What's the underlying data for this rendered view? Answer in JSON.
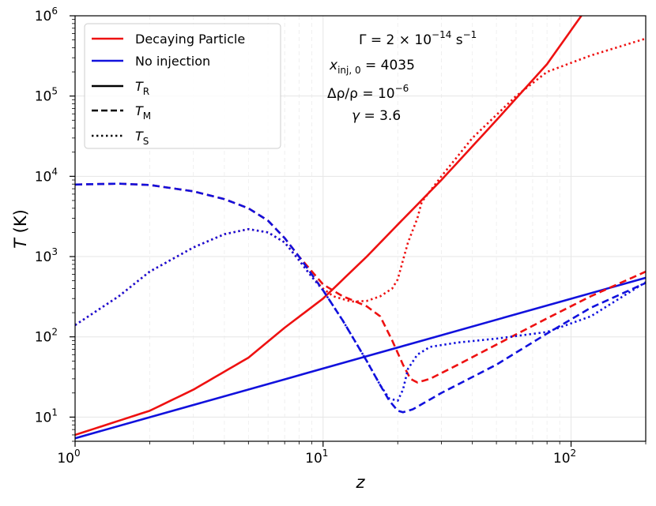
{
  "chart_data": {
    "type": "line",
    "xscale": "log",
    "yscale": "log",
    "xlim": [
      1,
      200
    ],
    "ylim": [
      5,
      1000000
    ],
    "xlabel": "z",
    "ylabel": "T (K)",
    "xticks": [
      {
        "value": 1,
        "base": "10",
        "exp": "0"
      },
      {
        "value": 10,
        "base": "10",
        "exp": "1"
      },
      {
        "value": 100,
        "base": "10",
        "exp": "2"
      }
    ],
    "yticks": [
      {
        "value": 10,
        "base": "10",
        "exp": "1"
      },
      {
        "value": 100,
        "base": "10",
        "exp": "2"
      },
      {
        "value": 1000,
        "base": "10",
        "exp": "3"
      },
      {
        "value": 10000,
        "base": "10",
        "exp": "4"
      },
      {
        "value": 100000,
        "base": "10",
        "exp": "5"
      },
      {
        "value": 1000000,
        "base": "10",
        "exp": "6"
      }
    ],
    "grid": true,
    "legend": {
      "position": "top-left",
      "entries": [
        {
          "label": "Decaying Particle",
          "color": "#ee1111",
          "style": "solid"
        },
        {
          "label": "No injection",
          "color": "#1111dd",
          "style": "solid"
        },
        {
          "label": "T_R",
          "math": "T",
          "sub": "R",
          "color": "#000000",
          "style": "solid"
        },
        {
          "label": "T_M",
          "math": "T",
          "sub": "M",
          "color": "#000000",
          "style": "dashed"
        },
        {
          "label": "T_S",
          "math": "T",
          "sub": "S",
          "color": "#000000",
          "style": "dotted"
        }
      ]
    },
    "annotations": {
      "gamma_rate": {
        "lhs": "Γ = 2 × 10",
        "exp": "−14",
        "unit": " s",
        "unit_exp": "−1"
      },
      "x_inj": {
        "var": "x",
        "sub": "inj, 0",
        "rhs": " = 4035"
      },
      "delta_rho": {
        "lhs": "Δρ/ρ = 10",
        "exp": "−6"
      },
      "gamma": {
        "var": "γ",
        "rhs": " = 3.6"
      }
    },
    "series": [
      {
        "name": "Decaying Particle T_R",
        "color": "#ee1111",
        "style": "solid",
        "points": [
          [
            1,
            6
          ],
          [
            2,
            12
          ],
          [
            3,
            22
          ],
          [
            5,
            55
          ],
          [
            7,
            130
          ],
          [
            10,
            300
          ],
          [
            15,
            1000
          ],
          [
            20,
            2500
          ],
          [
            30,
            9000
          ],
          [
            50,
            50000
          ],
          [
            80,
            250000
          ],
          [
            110,
            1000000
          ]
        ]
      },
      {
        "name": "No injection T_R",
        "color": "#1111dd",
        "style": "solid",
        "points": [
          [
            1,
            5.45
          ],
          [
            200,
            545
          ]
        ]
      },
      {
        "name": "Decaying Particle T_M",
        "color": "#ee1111",
        "style": "dashed",
        "points": [
          [
            1,
            7900
          ],
          [
            1.5,
            8100
          ],
          [
            2,
            7800
          ],
          [
            3,
            6500
          ],
          [
            4,
            5200
          ],
          [
            5,
            4000
          ],
          [
            6,
            2800
          ],
          [
            7,
            1700
          ],
          [
            8,
            1000
          ],
          [
            10,
            450
          ],
          [
            12,
            320
          ],
          [
            13,
            290
          ],
          [
            15,
            240
          ],
          [
            17,
            180
          ],
          [
            19,
            90
          ],
          [
            21,
            45
          ],
          [
            22.5,
            30
          ],
          [
            24,
            27
          ],
          [
            27,
            30
          ],
          [
            35,
            45
          ],
          [
            50,
            80
          ],
          [
            80,
            170
          ],
          [
            120,
            320
          ],
          [
            200,
            650
          ]
        ]
      },
      {
        "name": "No injection T_M",
        "color": "#1111dd",
        "style": "dashed",
        "points": [
          [
            1,
            7900
          ],
          [
            1.5,
            8100
          ],
          [
            2,
            7800
          ],
          [
            3,
            6500
          ],
          [
            4,
            5200
          ],
          [
            5,
            4000
          ],
          [
            6,
            2800
          ],
          [
            7,
            1700
          ],
          [
            8,
            1000
          ],
          [
            9,
            600
          ],
          [
            10,
            380
          ],
          [
            12,
            160
          ],
          [
            15,
            50
          ],
          [
            17,
            25
          ],
          [
            18.5,
            16
          ],
          [
            20,
            12
          ],
          [
            21,
            11.5
          ],
          [
            23,
            12.5
          ],
          [
            30,
            20
          ],
          [
            50,
            45
          ],
          [
            80,
            110
          ],
          [
            120,
            230
          ],
          [
            200,
            470
          ]
        ]
      },
      {
        "name": "Decaying Particle T_S",
        "color": "#ee1111",
        "style": "dotted",
        "points": [
          [
            1,
            140
          ],
          [
            1.5,
            320
          ],
          [
            2,
            650
          ],
          [
            3,
            1300
          ],
          [
            4,
            1900
          ],
          [
            5,
            2200
          ],
          [
            6,
            2000
          ],
          [
            7,
            1500
          ],
          [
            8,
            900
          ],
          [
            9,
            560
          ],
          [
            10,
            400
          ],
          [
            11,
            320
          ],
          [
            13,
            275
          ],
          [
            15,
            280
          ],
          [
            17,
            320
          ],
          [
            19,
            400
          ],
          [
            20,
            520
          ],
          [
            21,
            900
          ],
          [
            22,
            1500
          ],
          [
            24,
            3000
          ],
          [
            25,
            4800
          ],
          [
            30,
            10000
          ],
          [
            40,
            30000
          ],
          [
            60,
            100000
          ],
          [
            80,
            200000
          ],
          [
            120,
            320000
          ],
          [
            200,
            520000
          ]
        ]
      },
      {
        "name": "No injection T_S",
        "color": "#1111dd",
        "style": "dotted",
        "points": [
          [
            1,
            140
          ],
          [
            1.5,
            320
          ],
          [
            2,
            650
          ],
          [
            3,
            1300
          ],
          [
            4,
            1900
          ],
          [
            5,
            2200
          ],
          [
            6,
            2000
          ],
          [
            7,
            1500
          ],
          [
            8,
            900
          ],
          [
            9,
            560
          ],
          [
            10,
            380
          ],
          [
            12,
            160
          ],
          [
            15,
            50
          ],
          [
            17,
            25
          ],
          [
            18.5,
            17
          ],
          [
            20,
            16
          ],
          [
            21,
            22
          ],
          [
            22,
            40
          ],
          [
            24,
            60
          ],
          [
            27,
            75
          ],
          [
            35,
            85
          ],
          [
            50,
            95
          ],
          [
            80,
            115
          ],
          [
            120,
            180
          ],
          [
            200,
            480
          ]
        ]
      }
    ]
  }
}
